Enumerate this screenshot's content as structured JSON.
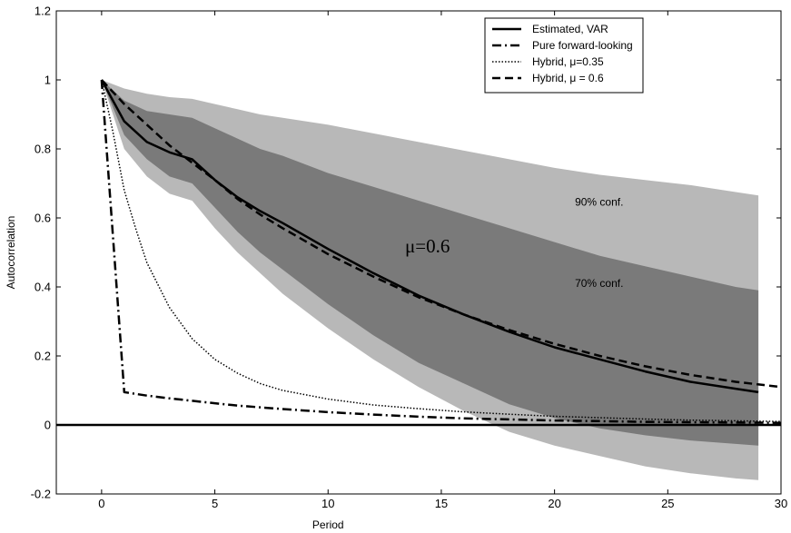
{
  "chart_data": {
    "type": "line",
    "xlabel": "Period",
    "ylabel": "Autocorrelation",
    "xlim": [
      -2,
      30
    ],
    "ylim": [
      -0.2,
      1.2
    ],
    "xticks": [
      0,
      5,
      10,
      15,
      20,
      25,
      30
    ],
    "yticks": [
      -0.2,
      0,
      0.2,
      0.4,
      0.6,
      0.8,
      1,
      1.2
    ],
    "xtick_labels": [
      "0",
      "5",
      "10",
      "15",
      "20",
      "25",
      "30"
    ],
    "ytick_labels": [
      "-0.2",
      "0",
      "0.2",
      "0.4",
      "0.6",
      "0.8",
      "1",
      "1.2"
    ],
    "grid": false,
    "legend_position": "top-right",
    "bands": [
      {
        "name": "90% conf.",
        "color": "#b8b8b8",
        "x": [
          0,
          1,
          2,
          3,
          4,
          5,
          6,
          7,
          8,
          10,
          12,
          14,
          16,
          18,
          20,
          22,
          24,
          26,
          28,
          29
        ],
        "upper": [
          1.0,
          0.975,
          0.96,
          0.95,
          0.945,
          0.93,
          0.915,
          0.9,
          0.89,
          0.87,
          0.845,
          0.82,
          0.795,
          0.77,
          0.745,
          0.725,
          0.71,
          0.695,
          0.675,
          0.665
        ],
        "lower": [
          1.0,
          0.8,
          0.72,
          0.67,
          0.65,
          0.57,
          0.5,
          0.44,
          0.38,
          0.28,
          0.19,
          0.11,
          0.04,
          -0.02,
          -0.06,
          -0.09,
          -0.12,
          -0.14,
          -0.155,
          -0.16
        ]
      },
      {
        "name": "70% conf.",
        "color": "#7a7a7a",
        "x": [
          0,
          1,
          2,
          3,
          4,
          5,
          6,
          7,
          8,
          10,
          12,
          14,
          16,
          18,
          20,
          22,
          24,
          26,
          28,
          29
        ],
        "upper": [
          1.0,
          0.94,
          0.91,
          0.9,
          0.89,
          0.86,
          0.83,
          0.8,
          0.78,
          0.73,
          0.69,
          0.65,
          0.61,
          0.57,
          0.53,
          0.49,
          0.46,
          0.43,
          0.4,
          0.39
        ],
        "lower": [
          1.0,
          0.84,
          0.77,
          0.72,
          0.7,
          0.63,
          0.56,
          0.5,
          0.45,
          0.35,
          0.26,
          0.18,
          0.12,
          0.06,
          0.02,
          -0.01,
          -0.03,
          -0.045,
          -0.055,
          -0.06
        ]
      }
    ],
    "series": [
      {
        "name": "Estimated, VAR",
        "style": "solid",
        "x": [
          0,
          1,
          2,
          3,
          4,
          5,
          6,
          7,
          8,
          10,
          12,
          14,
          16,
          18,
          20,
          22,
          24,
          26,
          28,
          29
        ],
        "values": [
          1.0,
          0.88,
          0.82,
          0.79,
          0.77,
          0.71,
          0.66,
          0.62,
          0.585,
          0.51,
          0.44,
          0.375,
          0.32,
          0.27,
          0.225,
          0.19,
          0.155,
          0.125,
          0.105,
          0.095
        ]
      },
      {
        "name": "Pure forward-looking",
        "style": "dashdot",
        "x": [
          0,
          1,
          2,
          3,
          4,
          5,
          6,
          8,
          10,
          12,
          14,
          16,
          18,
          20,
          22,
          24,
          26,
          28,
          30
        ],
        "values": [
          1.0,
          0.095,
          0.085,
          0.077,
          0.07,
          0.063,
          0.056,
          0.046,
          0.037,
          0.03,
          0.024,
          0.019,
          0.016,
          0.013,
          0.011,
          0.009,
          0.008,
          0.007,
          0.006
        ]
      },
      {
        "name": "Hybrid, μ=0.35",
        "style": "dotted",
        "x": [
          0,
          0.5,
          1,
          1.5,
          2,
          3,
          4,
          5,
          6,
          7,
          8,
          10,
          12,
          14,
          16,
          18,
          20,
          22,
          24,
          26,
          28,
          30
        ],
        "values": [
          1.0,
          0.85,
          0.68,
          0.57,
          0.47,
          0.34,
          0.25,
          0.19,
          0.15,
          0.12,
          0.1,
          0.075,
          0.058,
          0.047,
          0.038,
          0.031,
          0.025,
          0.021,
          0.017,
          0.014,
          0.012,
          0.01
        ]
      },
      {
        "name": "Hybrid, μ = 0.6",
        "style": "dashed",
        "x": [
          0,
          1,
          2,
          3,
          4,
          5,
          6,
          7,
          8,
          10,
          12,
          14,
          16,
          18,
          20,
          22,
          24,
          26,
          28,
          30
        ],
        "values": [
          1.0,
          0.93,
          0.87,
          0.81,
          0.76,
          0.71,
          0.655,
          0.61,
          0.57,
          0.495,
          0.43,
          0.37,
          0.32,
          0.275,
          0.235,
          0.2,
          0.17,
          0.145,
          0.125,
          0.11
        ]
      }
    ],
    "zero_line": 0,
    "annotations": [
      {
        "text": "90% conf.",
        "x": 20.9,
        "y": 0.635
      },
      {
        "text": "70% conf.",
        "x": 20.9,
        "y": 0.4
      },
      {
        "text": "μ=0.6",
        "x": 13.4,
        "y": 0.5
      }
    ]
  }
}
